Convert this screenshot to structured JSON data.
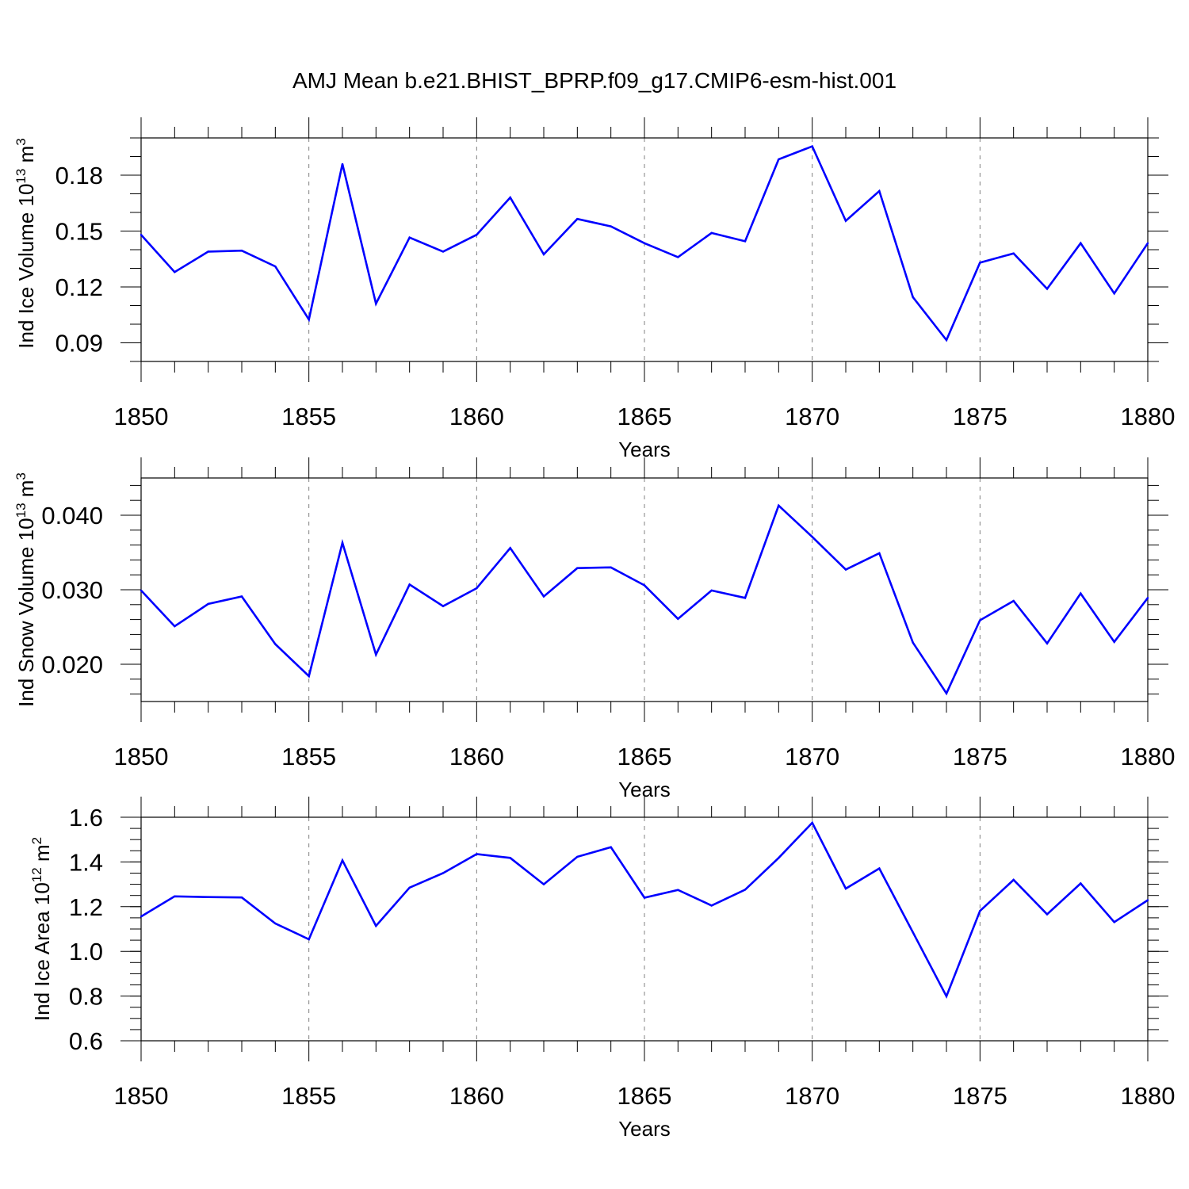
{
  "title": "AMJ Mean b.e21.BHIST_BPRP.f09_g17.CMIP6-esm-hist.001",
  "colors": {
    "series": "#0000ff",
    "axis": "#000000",
    "grid": "#808080"
  },
  "chart_data": [
    {
      "type": "line",
      "title": "AMJ Mean b.e21.BHIST_BPRP.f09_g17.CMIP6-esm-hist.001",
      "ylabel": {
        "main": "Ind Ice Volume 10",
        "sup1": "13",
        "mid": " m",
        "sup2": "3"
      },
      "xlabel": "Years",
      "xlim": [
        1850,
        1880
      ],
      "ylim": [
        0.08,
        0.2
      ],
      "xticks": [
        "1850",
        "1855",
        "1860",
        "1865",
        "1870",
        "1875",
        "1880"
      ],
      "yticks": [
        "0.09",
        "0.12",
        "0.15",
        "0.18"
      ],
      "x": [
        1850,
        1851,
        1852,
        1853,
        1854,
        1855,
        1856,
        1857,
        1858,
        1859,
        1860,
        1861,
        1862,
        1863,
        1864,
        1865,
        1866,
        1867,
        1868,
        1869,
        1870,
        1871,
        1872,
        1873,
        1874,
        1875,
        1876,
        1877,
        1878,
        1879,
        1880
      ],
      "values": [
        0.148,
        0.128,
        0.139,
        0.1395,
        0.131,
        0.1025,
        0.186,
        0.111,
        0.1465,
        0.139,
        0.148,
        0.168,
        0.1375,
        0.1565,
        0.1525,
        0.1435,
        0.136,
        0.149,
        0.1445,
        0.1885,
        0.1955,
        0.1555,
        0.1715,
        0.1145,
        0.0915,
        0.133,
        0.138,
        0.119,
        0.1435,
        0.1165,
        0.1435
      ]
    },
    {
      "type": "line",
      "ylabel": {
        "main": "Ind Snow Volume 10",
        "sup1": "13",
        "mid": " m",
        "sup2": "3"
      },
      "xlabel": "Years",
      "xlim": [
        1850,
        1880
      ],
      "ylim": [
        0.015,
        0.045
      ],
      "xticks": [
        "1850",
        "1855",
        "1860",
        "1865",
        "1870",
        "1875",
        "1880"
      ],
      "yticks": [
        "0.020",
        "0.030",
        "0.040"
      ],
      "x": [
        1850,
        1851,
        1852,
        1853,
        1854,
        1855,
        1856,
        1857,
        1858,
        1859,
        1860,
        1861,
        1862,
        1863,
        1864,
        1865,
        1866,
        1867,
        1868,
        1869,
        1870,
        1871,
        1872,
        1873,
        1874,
        1875,
        1876,
        1877,
        1878,
        1879,
        1880
      ],
      "values": [
        0.0299,
        0.0251,
        0.0281,
        0.0291,
        0.0227,
        0.0184,
        0.0363,
        0.0213,
        0.0307,
        0.0278,
        0.0302,
        0.0356,
        0.0291,
        0.0329,
        0.033,
        0.0306,
        0.0261,
        0.0299,
        0.0289,
        0.0413,
        0.0371,
        0.0327,
        0.0349,
        0.0229,
        0.0161,
        0.0259,
        0.0285,
        0.0228,
        0.0295,
        0.023,
        0.0289
      ]
    },
    {
      "type": "line",
      "ylabel": {
        "main": "Ind Ice Area 10",
        "sup1": "12",
        "mid": " m",
        "sup2": "2"
      },
      "xlabel": "Years",
      "xlim": [
        1850,
        1880
      ],
      "ylim": [
        0.6,
        1.6
      ],
      "xticks": [
        "1850",
        "1855",
        "1860",
        "1865",
        "1870",
        "1875",
        "1880"
      ],
      "yticks": [
        "0.6",
        "0.8",
        "1.0",
        "1.2",
        "1.4",
        "1.6"
      ],
      "x": [
        1850,
        1851,
        1852,
        1853,
        1854,
        1855,
        1856,
        1857,
        1858,
        1859,
        1860,
        1861,
        1862,
        1863,
        1864,
        1865,
        1866,
        1867,
        1868,
        1869,
        1870,
        1871,
        1872,
        1873,
        1874,
        1875,
        1876,
        1877,
        1878,
        1879,
        1880
      ],
      "values": [
        1.156,
        1.246,
        1.243,
        1.241,
        1.125,
        1.054,
        1.407,
        1.114,
        1.285,
        1.35,
        1.435,
        1.418,
        1.3,
        1.423,
        1.466,
        1.24,
        1.275,
        1.205,
        1.276,
        1.418,
        1.575,
        1.281,
        1.371,
        1.085,
        0.799,
        1.181,
        1.32,
        1.166,
        1.304,
        1.131,
        1.229
      ]
    }
  ]
}
